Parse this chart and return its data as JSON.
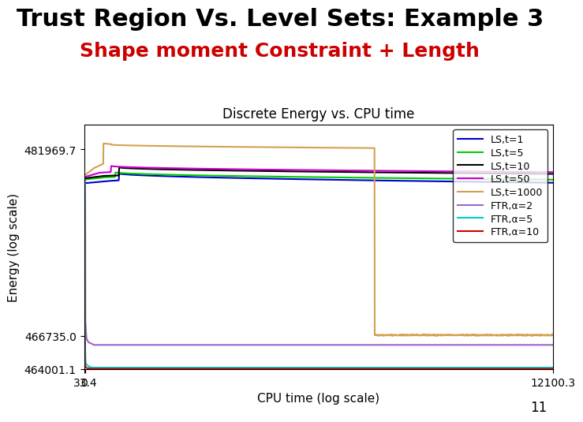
{
  "title_main": "Trust Region Vs. Level Sets: Example 3",
  "title_sub": "Shape moment Constraint + Length",
  "title_main_color": "#000000",
  "title_sub_color": "#cc0000",
  "plot_title": "Discrete Energy vs. CPU time",
  "xlabel": "CPU time (log scale)",
  "ylabel": "Energy (log scale)",
  "x_ticks": [
    0,
    33.4,
    12100.3
  ],
  "y_ticks": [
    464001.1,
    466735.0,
    481969.7
  ],
  "x_min": 0,
  "x_max": 12100.3,
  "y_min": 464001.1,
  "y_max": 484000,
  "page_number": "11",
  "legend_entries": [
    {
      "label": "LS,t=1",
      "color": "#0000cc",
      "lw": 1.5
    },
    {
      "label": "LS,t=5",
      "color": "#00cc00",
      "lw": 1.5
    },
    {
      "label": "LS,t=10",
      "color": "#000000",
      "lw": 1.5
    },
    {
      "label": "LS,t=50",
      "color": "#cc00cc",
      "lw": 1.5
    },
    {
      "label": "LS,t=1000",
      "color": "#d4a050",
      "lw": 1.5
    },
    {
      "label": "FTR,α=2",
      "color": "#9966cc",
      "lw": 1.5
    },
    {
      "label": "FTR,α=5",
      "color": "#00cccc",
      "lw": 1.5
    },
    {
      "label": "FTR,α=10",
      "color": "#cc0000",
      "lw": 1.5
    }
  ]
}
